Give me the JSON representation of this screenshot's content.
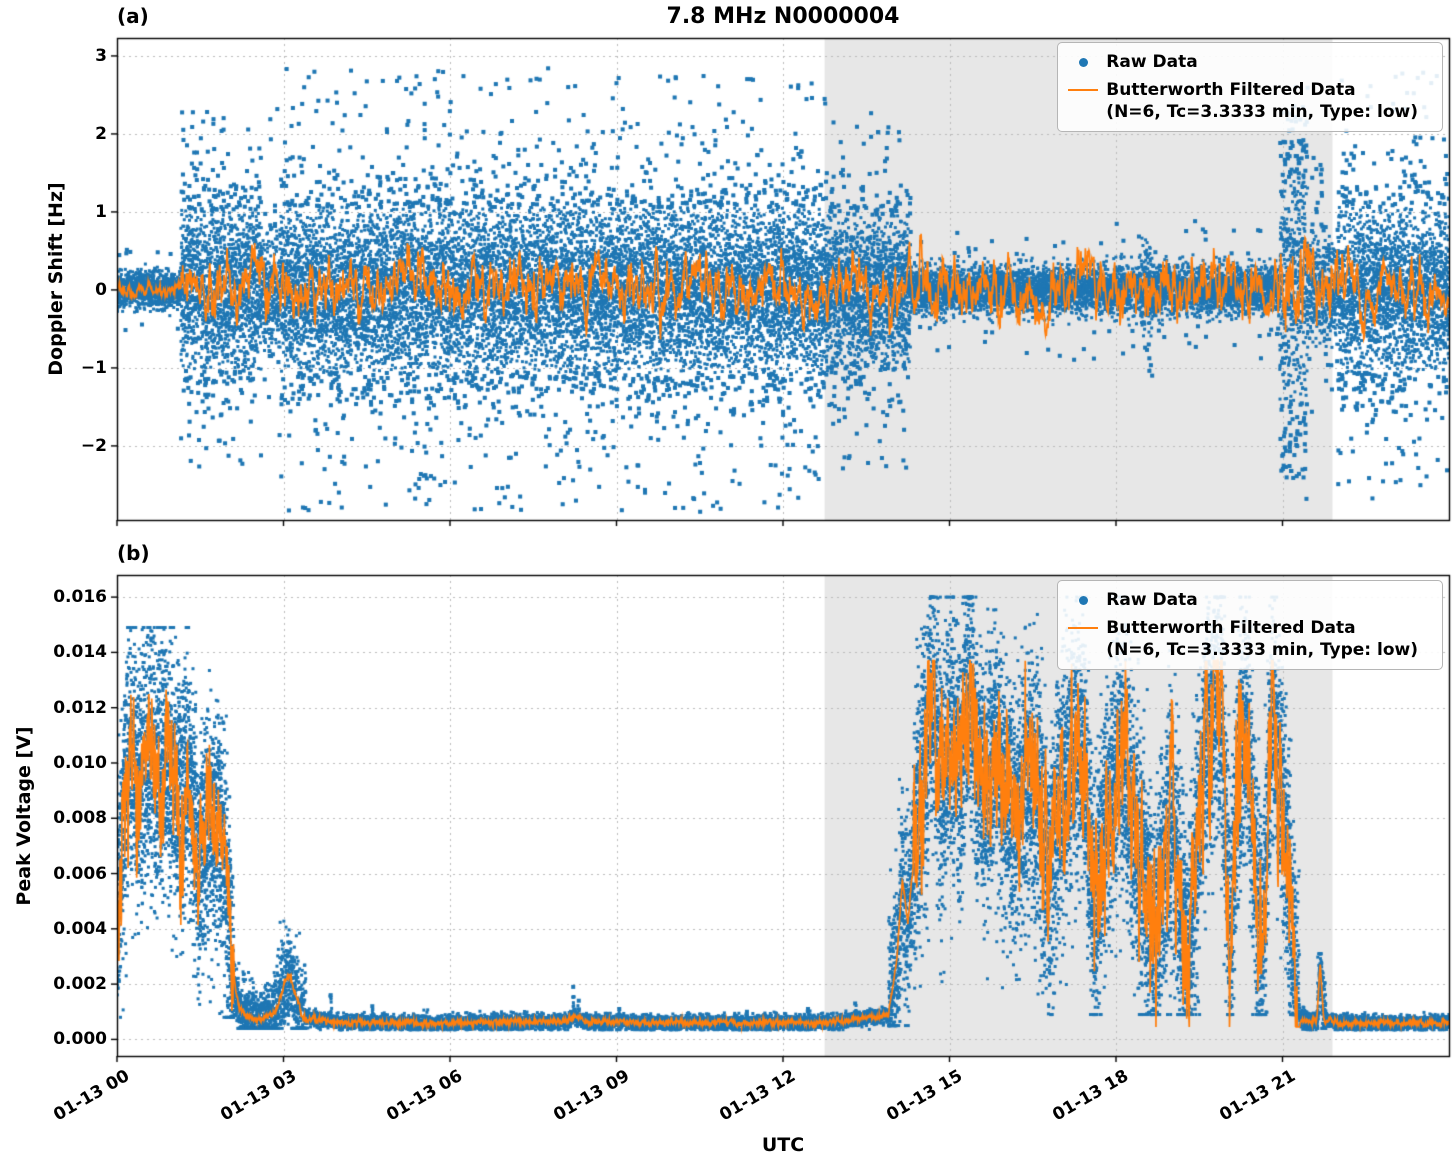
{
  "legend": {
    "raw": "Raw Data",
    "filtered_line1": "Butterworth Filtered Data",
    "filtered_line2": "(N=6, Tc=3.3333 min, Type: low)"
  },
  "colors": {
    "raw": "#1f77b4",
    "filtered": "#ff7f0e",
    "shade": "#e7e7e7",
    "grid": "#bbbbbb",
    "spine": "#000000"
  },
  "chart_data": [
    {
      "type": "scatter",
      "panel_label": "(a)",
      "title": "7.8 MHz N0000004",
      "ylabel": "Doppler Shift [Hz]",
      "ylim": [
        -2.95,
        3.23
      ],
      "yticks": [
        3,
        2,
        1,
        0,
        -1,
        -2
      ],
      "ytick_labels": [
        "3",
        "2",
        "1",
        "0",
        "−1",
        "−2"
      ],
      "x_range_hours": [
        0,
        24
      ],
      "xticks_hours": [
        0,
        3,
        6,
        9,
        12,
        15,
        18,
        21
      ],
      "xtick_labels_visible": false,
      "shade_hours": [
        12.75,
        21.9
      ],
      "grid": true,
      "legend_position": "upper right",
      "series": [
        {
          "name": "Raw Data",
          "kind": "scatter"
        },
        {
          "name": "Butterworth Filtered Data (N=6, Tc=3.3333 min, Type: low)",
          "kind": "line"
        }
      ],
      "raw_envelope": [
        {
          "t0": 0.0,
          "t1": 1.15,
          "sigma": 0.12,
          "out": 0.55,
          "out_prob": 0.015,
          "n": 5
        },
        {
          "t0": 1.15,
          "t1": 2.6,
          "sigma": 0.55,
          "out": 2.3,
          "out_prob": 0.05,
          "n": 7
        },
        {
          "t0": 2.6,
          "t1": 2.95,
          "sigma": 0.38,
          "out": 2.6,
          "out_prob": 0.03,
          "n": 5
        },
        {
          "t0": 2.95,
          "t1": 12.8,
          "sigma": 0.58,
          "out": 2.85,
          "out_prob": 0.05,
          "n": 7
        },
        {
          "t0": 12.8,
          "t1": 14.3,
          "sigma": 0.5,
          "out": 2.35,
          "out_prob": 0.04,
          "n": 7
        },
        {
          "t0": 14.3,
          "t1": 18.45,
          "sigma": 0.15,
          "out": 0.9,
          "out_prob": 0.012,
          "n": 5
        },
        {
          "t0": 18.45,
          "t1": 18.65,
          "sigma": 0.3,
          "out": 1.5,
          "out_prob": 0.05,
          "n": 5
        },
        {
          "t0": 18.65,
          "t1": 20.95,
          "sigma": 0.15,
          "out": 0.9,
          "out_prob": 0.012,
          "n": 5
        },
        {
          "t0": 20.95,
          "t1": 21.45,
          "sigma": 0.85,
          "out": 2.45,
          "out_prob": 0.18,
          "n": 7
        },
        {
          "t0": 21.45,
          "t1": 22.0,
          "sigma": 0.35,
          "out": 1.7,
          "out_prob": 0.03,
          "n": 5
        },
        {
          "t0": 22.0,
          "t1": 24.0,
          "sigma": 0.58,
          "out": 2.85,
          "out_prob": 0.05,
          "n": 7
        }
      ],
      "filtered_noise": [
        {
          "t0": 0.0,
          "t1": 1.15,
          "amp": 0.05
        },
        {
          "t0": 1.15,
          "t1": 14.3,
          "amp": 0.2
        },
        {
          "t0": 14.3,
          "t1": 20.95,
          "amp": 0.22
        },
        {
          "t0": 20.95,
          "t1": 21.5,
          "amp": 0.34
        },
        {
          "t0": 21.5,
          "t1": 24.0,
          "amp": 0.2
        }
      ]
    },
    {
      "type": "scatter",
      "panel_label": "(b)",
      "title": "",
      "xlabel": "UTC",
      "ylabel": "Peak Voltage [V]",
      "ylim": [
        -0.0006,
        0.0168
      ],
      "yticks": [
        0.016,
        0.014,
        0.012,
        0.01,
        0.008,
        0.006,
        0.004,
        0.002,
        0.0
      ],
      "ytick_labels": [
        "0.016",
        "0.014",
        "0.012",
        "0.010",
        "0.008",
        "0.006",
        "0.004",
        "0.002",
        "0.000"
      ],
      "x_range_hours": [
        0,
        24
      ],
      "xticks_hours": [
        0,
        3,
        6,
        9,
        12,
        15,
        18,
        21
      ],
      "xtick_labels": [
        "01-13 00",
        "01-13 03",
        "01-13 06",
        "01-13 09",
        "01-13 12",
        "01-13 15",
        "01-13 18",
        "01-13 21"
      ],
      "xtick_labels_visible": true,
      "shade_hours": [
        12.75,
        21.9
      ],
      "grid": true,
      "legend_position": "upper right",
      "series": [
        {
          "name": "Raw Data",
          "kind": "scatter"
        },
        {
          "name": "Butterworth Filtered Data (N=6, Tc=3.3333 min, Type: low)",
          "kind": "line"
        }
      ],
      "filtered_anchors": [
        [
          0,
          0.004
        ],
        [
          0.1,
          0.0075
        ],
        [
          0.25,
          0.0105
        ],
        [
          0.4,
          0.009
        ],
        [
          0.55,
          0.0107
        ],
        [
          0.7,
          0.0094
        ],
        [
          0.85,
          0.0102
        ],
        [
          1.0,
          0.0093
        ],
        [
          1.15,
          0.0088
        ],
        [
          1.3,
          0.0096
        ],
        [
          1.45,
          0.0065
        ],
        [
          1.6,
          0.0073
        ],
        [
          1.75,
          0.0078
        ],
        [
          1.9,
          0.0068
        ],
        [
          2.0,
          0.0048
        ],
        [
          2.1,
          0.002
        ],
        [
          2.2,
          0.0011
        ],
        [
          2.35,
          0.0008
        ],
        [
          2.6,
          0.0007
        ],
        [
          2.85,
          0.001
        ],
        [
          3.0,
          0.0019
        ],
        [
          3.1,
          0.0024
        ],
        [
          3.2,
          0.0017
        ],
        [
          3.35,
          0.0008
        ],
        [
          4.0,
          0.00062
        ],
        [
          6.0,
          0.0006
        ],
        [
          8.1,
          0.00065
        ],
        [
          8.25,
          0.0009
        ],
        [
          8.4,
          0.00065
        ],
        [
          10.0,
          0.0006
        ],
        [
          12.0,
          0.0006
        ],
        [
          13.0,
          0.00062
        ],
        [
          13.9,
          0.0009
        ],
        [
          14.05,
          0.0028
        ],
        [
          14.15,
          0.0058
        ],
        [
          14.25,
          0.0042
        ],
        [
          14.4,
          0.0075
        ],
        [
          14.55,
          0.0098
        ],
        [
          14.7,
          0.0125
        ],
        [
          14.85,
          0.009
        ],
        [
          15.0,
          0.0112
        ],
        [
          15.2,
          0.0098
        ],
        [
          15.35,
          0.0134
        ],
        [
          15.5,
          0.0102
        ],
        [
          15.65,
          0.0088
        ],
        [
          15.8,
          0.0108
        ],
        [
          16.0,
          0.0092
        ],
        [
          16.2,
          0.0078
        ],
        [
          16.4,
          0.0098
        ],
        [
          16.6,
          0.0085
        ],
        [
          16.8,
          0.006
        ],
        [
          17.0,
          0.0088
        ],
        [
          17.2,
          0.0102
        ],
        [
          17.4,
          0.0108
        ],
        [
          17.6,
          0.0042
        ],
        [
          17.75,
          0.0065
        ],
        [
          17.9,
          0.0088
        ],
        [
          18.1,
          0.0102
        ],
        [
          18.3,
          0.0078
        ],
        [
          18.5,
          0.0058
        ],
        [
          18.7,
          0.0035
        ],
        [
          18.85,
          0.006
        ],
        [
          19.0,
          0.0082
        ],
        [
          19.15,
          0.0048
        ],
        [
          19.3,
          0.0026
        ],
        [
          19.45,
          0.0068
        ],
        [
          19.6,
          0.0105
        ],
        [
          19.75,
          0.0118
        ],
        [
          19.9,
          0.0122
        ],
        [
          20.05,
          0.0032
        ],
        [
          20.2,
          0.0095
        ],
        [
          20.35,
          0.0118
        ],
        [
          20.5,
          0.0062
        ],
        [
          20.65,
          0.0028
        ],
        [
          20.8,
          0.0122
        ],
        [
          20.95,
          0.0098
        ],
        [
          21.1,
          0.0062
        ],
        [
          21.2,
          0.0025
        ],
        [
          21.3,
          0.0008
        ],
        [
          21.5,
          0.00062
        ],
        [
          21.62,
          0.0007
        ],
        [
          21.68,
          0.0028
        ],
        [
          21.74,
          0.0008
        ],
        [
          22.0,
          0.0006
        ],
        [
          24.0,
          0.0006
        ]
      ],
      "raw_envelope": [
        {
          "t0": 0.0,
          "t1": 2.1,
          "sigma": 0.0022,
          "vmin": 0.0008,
          "vmax": 0.0149,
          "n": 8
        },
        {
          "t0": 2.1,
          "t1": 2.8,
          "sigma": 0.0005,
          "vmin": 0.0004,
          "vmax": 0.003,
          "n": 5
        },
        {
          "t0": 2.8,
          "t1": 3.4,
          "sigma": 0.0009,
          "vmin": 0.0004,
          "vmax": 0.0043,
          "n": 5
        },
        {
          "t0": 3.4,
          "t1": 13.9,
          "sigma": 0.00013,
          "vmin": 0.00035,
          "vmax": 0.0015,
          "n": 4
        },
        {
          "t0": 13.9,
          "t1": 14.35,
          "sigma": 0.0016,
          "vmin": 0.0005,
          "vmax": 0.0102,
          "n": 6
        },
        {
          "t0": 14.35,
          "t1": 21.3,
          "sigma": 0.0023,
          "vmin": 0.0009,
          "vmax": 0.016,
          "n": 8
        },
        {
          "t0": 21.3,
          "t1": 21.62,
          "sigma": 0.00015,
          "vmin": 0.00035,
          "vmax": 0.0012,
          "n": 4
        },
        {
          "t0": 21.62,
          "t1": 21.78,
          "sigma": 0.0007,
          "vmin": 0.0004,
          "vmax": 0.0031,
          "n": 5
        },
        {
          "t0": 21.78,
          "t1": 24.0,
          "sigma": 0.00013,
          "vmin": 0.00035,
          "vmax": 0.0012,
          "n": 4
        }
      ],
      "spikes": [
        [
          3.85,
          0.0016
        ],
        [
          4.6,
          0.0012
        ],
        [
          8.22,
          0.0019
        ],
        [
          8.32,
          0.0014
        ],
        [
          9.05,
          0.0011
        ],
        [
          11.35,
          0.001
        ],
        [
          12.45,
          0.0011
        ],
        [
          13.3,
          0.0013
        ]
      ],
      "filtered_noise": [
        {
          "t0": 0.0,
          "t1": 2.1,
          "amp": 0.0009
        },
        {
          "t0": 14.35,
          "t1": 21.3,
          "amp": 0.0011
        }
      ]
    }
  ]
}
